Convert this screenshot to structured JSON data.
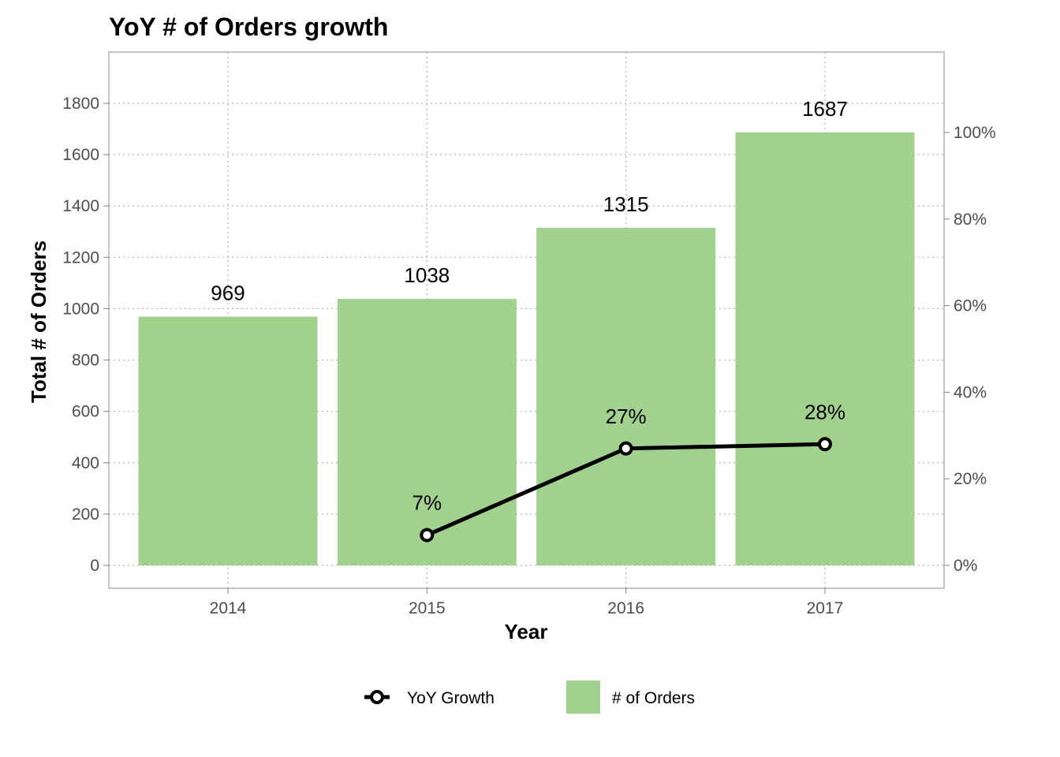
{
  "chart_data": {
    "type": "bar",
    "title": "YoY # of Orders growth",
    "xlabel": "Year",
    "ylabel": "Total # of Orders",
    "categories": [
      "2014",
      "2015",
      "2016",
      "2017"
    ],
    "ylim": [
      -90,
      1980
    ],
    "yticks": [
      0,
      200,
      400,
      600,
      800,
      1000,
      1200,
      1400,
      1600,
      1800
    ],
    "y2ticks": [
      0,
      20,
      40,
      60,
      80,
      100
    ],
    "y2_tick_labels": [
      "0%",
      "20%",
      "40%",
      "60%",
      "80%",
      "100%"
    ],
    "grid": true,
    "legend_position": "bottom",
    "series": [
      {
        "name": "# of Orders",
        "type": "bar",
        "axis": "left",
        "values": [
          969,
          1038,
          1315,
          1687
        ],
        "labels": [
          "969",
          "1038",
          "1315",
          "1687"
        ],
        "color": "#a1d08f"
      },
      {
        "name": "YoY Growth",
        "type": "line",
        "axis": "right",
        "values": [
          null,
          7,
          27,
          28
        ],
        "labels": [
          "",
          "7%",
          "27%",
          "28%"
        ],
        "color": "#000000"
      }
    ]
  }
}
